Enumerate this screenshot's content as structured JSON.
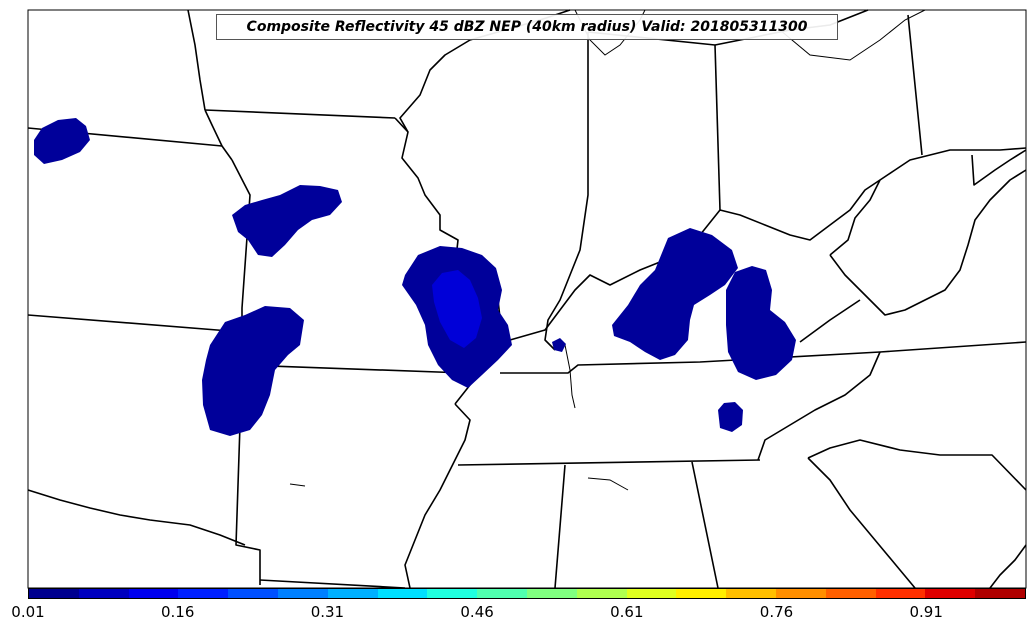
{
  "title": "Composite Reflectivity 45 dBZ NEP (40km radius) Valid: 201805311300",
  "colorbar": {
    "tick_labels": [
      "0.01",
      "0.16",
      "0.31",
      "0.46",
      "0.61",
      "0.76",
      "0.91"
    ],
    "colors": [
      "#00008f",
      "#0000bf",
      "#0000ef",
      "#0020ff",
      "#0050ff",
      "#0080ff",
      "#00b0ff",
      "#00e0ff",
      "#20ffdf",
      "#50ffaf",
      "#80ff80",
      "#afff50",
      "#dfff20",
      "#ffef00",
      "#ffbf00",
      "#ff8f00",
      "#ff6000",
      "#ff3000",
      "#df0000",
      "#af0000"
    ]
  },
  "fill_colors": {
    "low_probability": "#00009a",
    "higher_probability": "#0000d8"
  }
}
